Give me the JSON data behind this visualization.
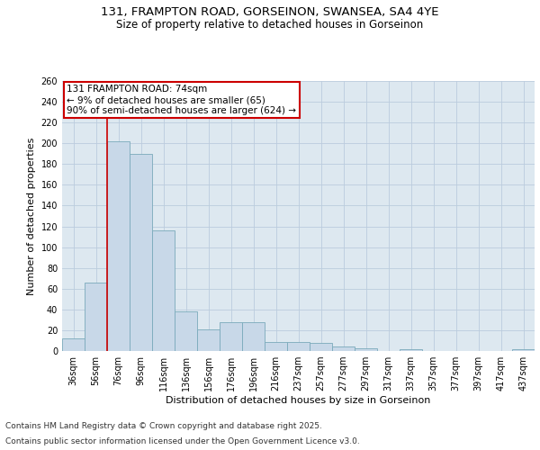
{
  "title_line1": "131, FRAMPTON ROAD, GORSEINON, SWANSEA, SA4 4YE",
  "title_line2": "Size of property relative to detached houses in Gorseinon",
  "xlabel": "Distribution of detached houses by size in Gorseinon",
  "ylabel": "Number of detached properties",
  "categories": [
    "36sqm",
    "56sqm",
    "76sqm",
    "96sqm",
    "116sqm",
    "136sqm",
    "156sqm",
    "176sqm",
    "196sqm",
    "216sqm",
    "237sqm",
    "257sqm",
    "277sqm",
    "297sqm",
    "317sqm",
    "337sqm",
    "357sqm",
    "377sqm",
    "397sqm",
    "417sqm",
    "437sqm"
  ],
  "values": [
    12,
    66,
    202,
    190,
    116,
    38,
    21,
    28,
    28,
    9,
    9,
    8,
    4,
    3,
    0,
    2,
    0,
    0,
    0,
    0,
    2
  ],
  "bar_color": "#c8d8e8",
  "bar_edge_color": "#7aaabb",
  "property_line_x": 2,
  "annotation_text": "131 FRAMPTON ROAD: 74sqm\n← 9% of detached houses are smaller (65)\n90% of semi-detached houses are larger (624) →",
  "annotation_box_color": "#ffffff",
  "annotation_box_edge_color": "#cc0000",
  "vline_color": "#cc0000",
  "ylim": [
    0,
    260
  ],
  "yticks": [
    0,
    20,
    40,
    60,
    80,
    100,
    120,
    140,
    160,
    180,
    200,
    220,
    240,
    260
  ],
  "grid_color": "#bbccdd",
  "background_color": "#dde8f0",
  "fig_background": "#ffffff",
  "footer_line1": "Contains HM Land Registry data © Crown copyright and database right 2025.",
  "footer_line2": "Contains public sector information licensed under the Open Government Licence v3.0.",
  "title_fontsize": 9.5,
  "subtitle_fontsize": 8.5,
  "axis_label_fontsize": 8,
  "tick_fontsize": 7,
  "annotation_fontsize": 7.5,
  "footer_fontsize": 6.5
}
